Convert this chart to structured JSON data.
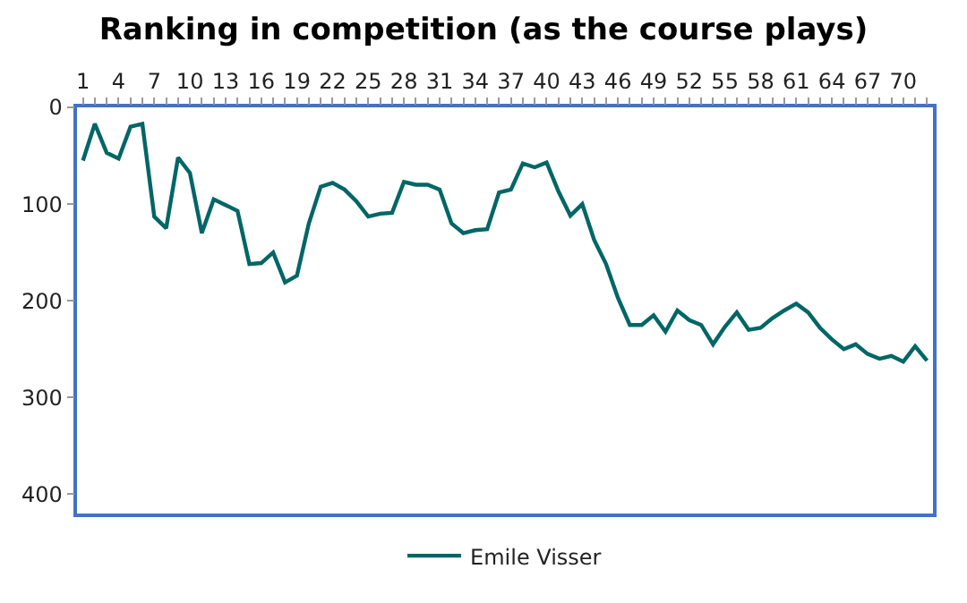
{
  "chart_data": {
    "type": "line",
    "title": "Ranking in competition (as the course plays)",
    "categories": [
      "1",
      null,
      null,
      "4",
      null,
      null,
      "7",
      null,
      null,
      "10",
      null,
      null,
      "13",
      null,
      null,
      "16",
      null,
      null,
      "19",
      null,
      null,
      "22",
      null,
      null,
      "25",
      null,
      null,
      "28",
      null,
      null,
      "31",
      null,
      null,
      "34",
      null,
      null,
      "37",
      null,
      null,
      "40",
      null,
      null,
      "43",
      null,
      null,
      "46",
      null,
      null,
      "49",
      null,
      null,
      "52",
      null,
      null,
      "55",
      null,
      null,
      "58",
      null,
      null,
      "61",
      null,
      null,
      "64",
      null,
      null,
      "67",
      null,
      null,
      "70",
      null,
      null
    ],
    "series": [
      {
        "name": "Emile Visser",
        "color": "#006666",
        "values": [
          55,
          17,
          47,
          53,
          20,
          17,
          113,
          125,
          52,
          68,
          130,
          95,
          101,
          107,
          162,
          161,
          150,
          181,
          174,
          120,
          82,
          78,
          85,
          97,
          113,
          110,
          109,
          77,
          80,
          80,
          85,
          120,
          130,
          127,
          126,
          88,
          85,
          58,
          62,
          57,
          87,
          112,
          100,
          137,
          162,
          197,
          225,
          225,
          215,
          232,
          210,
          220,
          225,
          245,
          227,
          212,
          230,
          228,
          218,
          210,
          203,
          212,
          228,
          240,
          250,
          245,
          255,
          260,
          257,
          263,
          247,
          262
        ]
      }
    ],
    "ylim": [
      420,
      0
    ],
    "yticks": [
      0,
      100,
      200,
      300,
      400
    ],
    "legend": "bottom",
    "marker": "none",
    "line_style": "solid"
  }
}
